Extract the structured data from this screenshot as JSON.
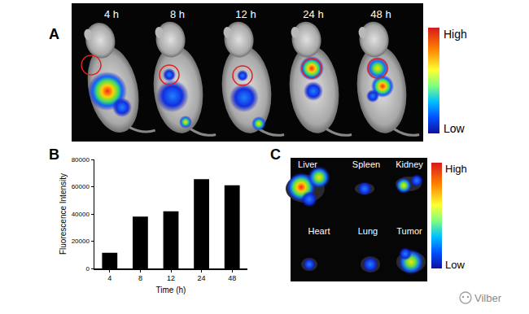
{
  "panels": {
    "A": {
      "label": "A",
      "times": [
        "4 h",
        "8 h",
        "12 h",
        "24 h",
        "48 h"
      ],
      "colorbar": {
        "high": "High",
        "low": "Low"
      }
    },
    "B": {
      "label": "B"
    },
    "C": {
      "label": "C",
      "organs": [
        "Liver",
        "Spleen",
        "Kidney",
        "Heart",
        "Lung",
        "Tumor"
      ],
      "colorbar": {
        "high": "High",
        "low": "Low"
      }
    }
  },
  "watermark": "Vilber",
  "chart_data": {
    "type": "bar",
    "categories": [
      "4",
      "8",
      "12",
      "24",
      "48"
    ],
    "values": [
      11500,
      38000,
      42000,
      65500,
      61000
    ],
    "color": "#000000",
    "xlabel": "Time (h)",
    "ylabel": "Fluorescence Intensity",
    "ylim": [
      0,
      80000
    ],
    "yticks": [
      0,
      20000,
      40000,
      60000,
      80000
    ],
    "grid": false
  }
}
